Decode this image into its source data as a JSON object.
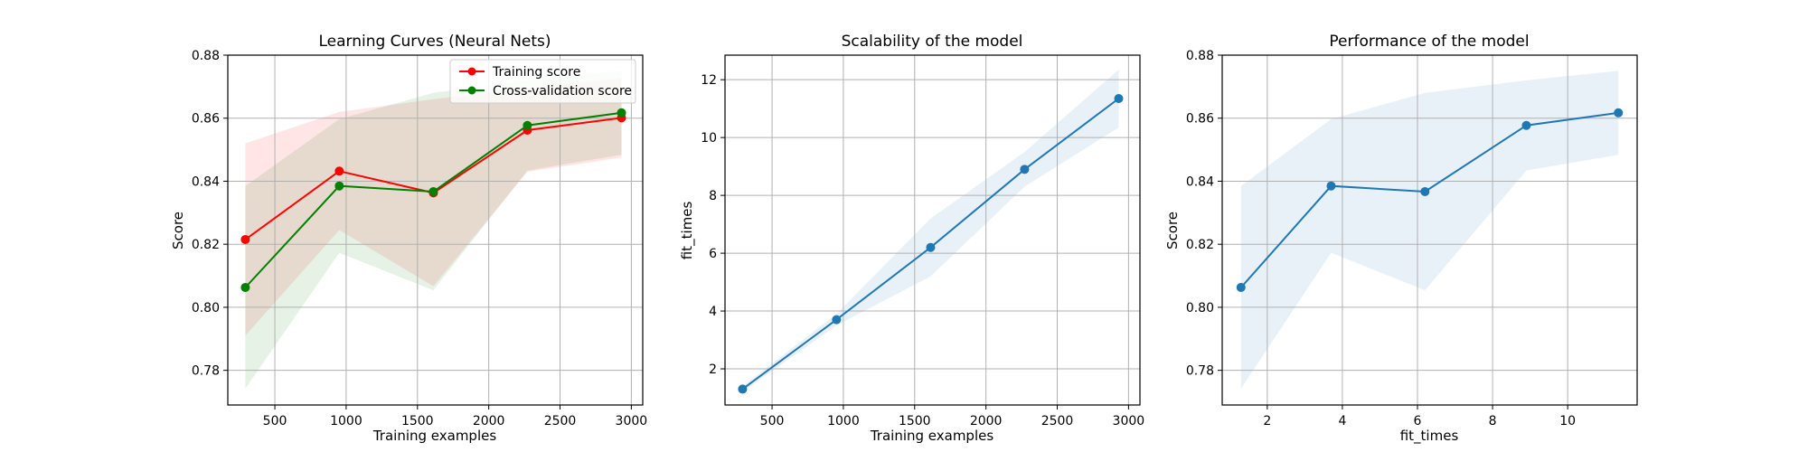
{
  "colors": {
    "training": "#ff0000",
    "cv": "#008000",
    "blue": "#1f77b4",
    "grid": "#b0b0b0"
  },
  "chart_data": [
    {
      "type": "line",
      "title": "Learning Curves (Neural Nets)",
      "xlabel": "Training examples",
      "ylabel": "Score",
      "xlim": [
        170,
        3080
      ],
      "ylim": [
        0.769,
        0.88
      ],
      "xticks": [
        500,
        1000,
        1500,
        2000,
        2500,
        3000
      ],
      "yticks": [
        0.78,
        0.8,
        0.82,
        0.84,
        0.86,
        0.88
      ],
      "ytick_format": 2,
      "grid": true,
      "legend": {
        "position": "top-right"
      },
      "x": [
        293,
        952,
        1612,
        2271,
        2931
      ],
      "series": [
        {
          "name": "Training score",
          "color": "#ff0000",
          "values": [
            0.8215,
            0.8432,
            0.8363,
            0.8562,
            0.8601
          ],
          "band_upper": [
            0.852,
            0.862,
            0.866,
            0.8695,
            0.8727
          ],
          "band_lower": [
            0.791,
            0.8245,
            0.8067,
            0.843,
            0.8475
          ]
        },
        {
          "name": "Cross-validation score",
          "color": "#008000",
          "values": [
            0.8063,
            0.8385,
            0.8367,
            0.8577,
            0.8617
          ],
          "band_upper": [
            0.8385,
            0.8597,
            0.868,
            0.872,
            0.875
          ],
          "band_lower": [
            0.7742,
            0.8173,
            0.8054,
            0.8434,
            0.8484
          ]
        }
      ]
    },
    {
      "type": "line",
      "title": "Scalability of the model",
      "xlabel": "Training examples",
      "ylabel": "fit_times",
      "xlim": [
        170,
        3080
      ],
      "ylim": [
        0.75,
        12.85
      ],
      "xticks": [
        500,
        1000,
        1500,
        2000,
        2500,
        3000
      ],
      "yticks": [
        2,
        4,
        6,
        8,
        10,
        12
      ],
      "ytick_format": 0,
      "grid": true,
      "x": [
        293,
        952,
        1612,
        2271,
        2931
      ],
      "series": [
        {
          "name": "fit_times",
          "color": "#1f77b4",
          "values": [
            1.3,
            3.7,
            6.2,
            8.9,
            11.35
          ],
          "band_upper": [
            1.4,
            3.9,
            7.2,
            9.5,
            12.35
          ],
          "band_lower": [
            1.2,
            3.5,
            5.2,
            8.3,
            10.35
          ]
        }
      ]
    },
    {
      "type": "line",
      "title": "Performance of the model",
      "xlabel": "fit_times",
      "ylabel": "Score",
      "xlim": [
        0.8,
        11.85
      ],
      "ylim": [
        0.769,
        0.88
      ],
      "xticks": [
        2,
        4,
        6,
        8,
        10
      ],
      "yticks": [
        0.78,
        0.8,
        0.82,
        0.84,
        0.86,
        0.88
      ],
      "ytick_format": 2,
      "grid": true,
      "x": [
        1.3,
        3.7,
        6.2,
        8.9,
        11.35
      ],
      "series": [
        {
          "name": "Score",
          "color": "#1f77b4",
          "values": [
            0.8063,
            0.8385,
            0.8367,
            0.8577,
            0.8617
          ],
          "band_upper": [
            0.8385,
            0.8597,
            0.868,
            0.872,
            0.875
          ],
          "band_lower": [
            0.7742,
            0.8173,
            0.8054,
            0.8434,
            0.8484
          ]
        }
      ]
    }
  ]
}
